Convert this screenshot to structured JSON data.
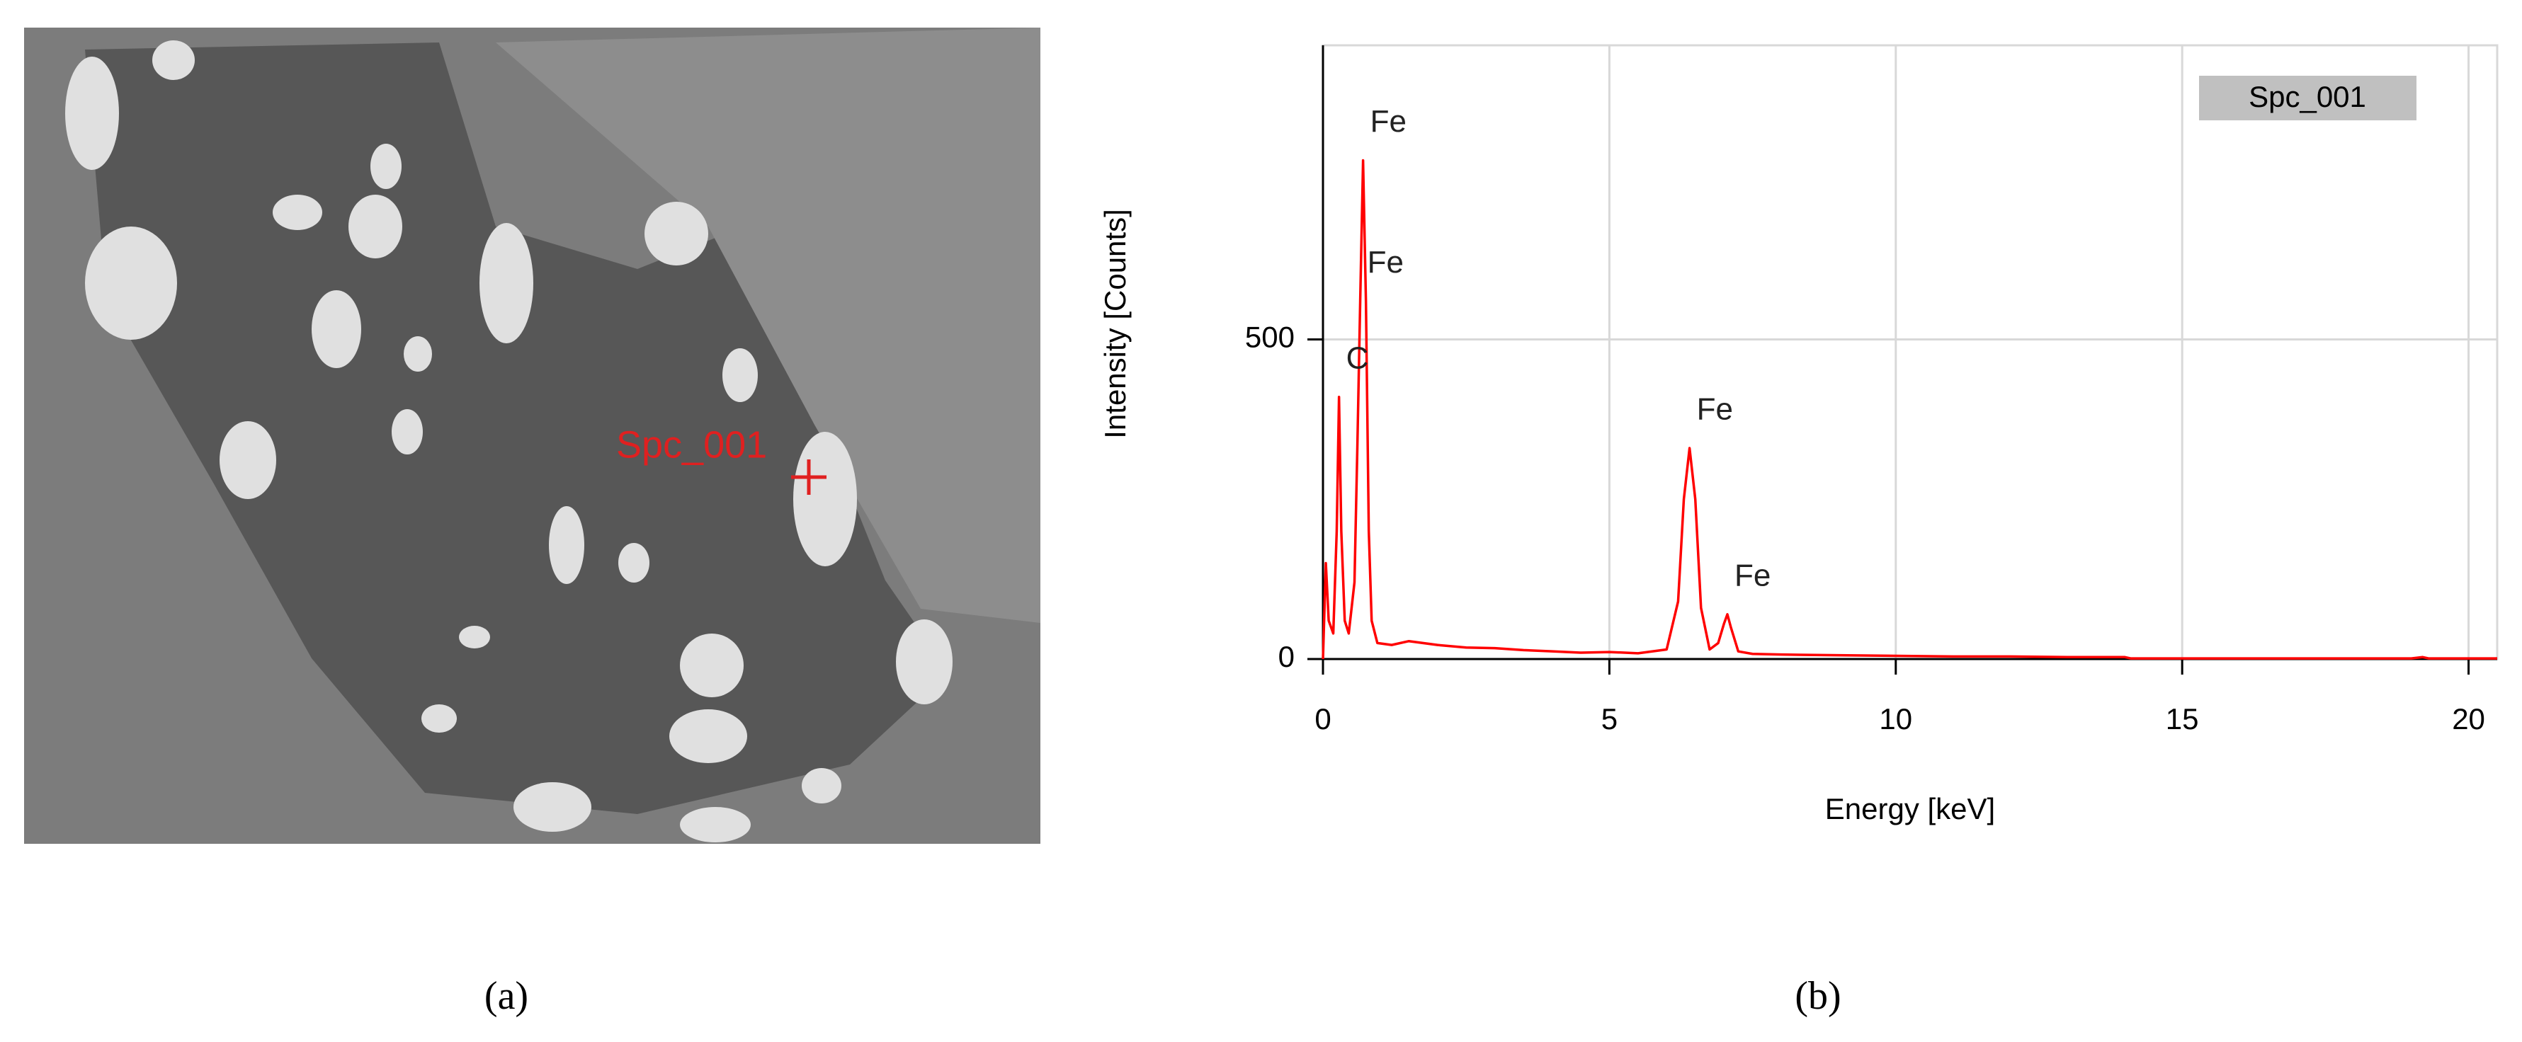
{
  "figure": {
    "panel_a": {
      "marker_label": "Spc_001",
      "caption": "(a)"
    },
    "panel_b": {
      "caption": "(b)"
    }
  },
  "chart_data": {
    "type": "line",
    "xlabel": "Energy [keV]",
    "ylabel": "Intensity [Counts]",
    "xlim": [
      0,
      20.5
    ],
    "ylim": [
      0,
      960
    ],
    "xticks": [
      0,
      5,
      10,
      15,
      20
    ],
    "yticks": [
      0,
      500
    ],
    "grid": true,
    "legend": "upper right",
    "series": [
      {
        "name": "Spc_001",
        "color": "#ff0000",
        "x": [
          0,
          0.05,
          0.1,
          0.18,
          0.24,
          0.28,
          0.32,
          0.38,
          0.45,
          0.55,
          0.6,
          0.65,
          0.7,
          0.75,
          0.8,
          0.85,
          0.95,
          1.2,
          1.5,
          2,
          2.5,
          3,
          3.5,
          4,
          4.5,
          5,
          5.5,
          6,
          6.2,
          6.3,
          6.4,
          6.5,
          6.6,
          6.75,
          6.9,
          7.0,
          7.06,
          7.12,
          7.25,
          7.5,
          8,
          9,
          10,
          11,
          12,
          13,
          14,
          14.1,
          15,
          16,
          17,
          18,
          19,
          19.2,
          19.3,
          20,
          20.5
        ],
        "values": [
          0,
          150,
          60,
          40,
          200,
          410,
          200,
          60,
          40,
          120,
          330,
          560,
          780,
          560,
          200,
          60,
          25,
          22,
          28,
          22,
          18,
          17,
          14,
          12,
          10,
          11,
          9,
          15,
          90,
          250,
          330,
          250,
          80,
          15,
          25,
          55,
          70,
          50,
          12,
          8,
          7,
          6,
          5,
          4,
          4,
          3,
          3,
          1,
          1,
          1,
          1,
          1,
          1,
          3,
          1,
          1,
          1
        ]
      }
    ],
    "annotations": [
      {
        "text": "Fe",
        "x": 0.7,
        "y": 780
      },
      {
        "text": "Fe",
        "x": 0.65,
        "y": 560
      },
      {
        "text": "C",
        "x": 0.28,
        "y": 410
      },
      {
        "text": "Fe",
        "x": 6.4,
        "y": 330
      },
      {
        "text": "Fe",
        "x": 7.06,
        "y": 70
      }
    ]
  }
}
